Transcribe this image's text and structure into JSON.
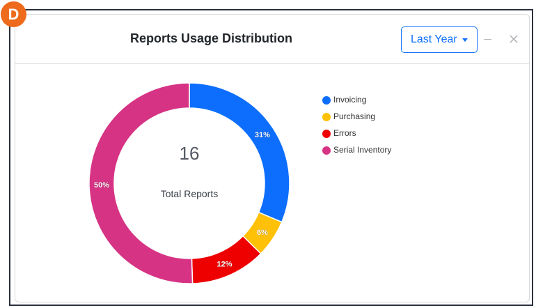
{
  "badge": {
    "letter": "D",
    "color": "#ee6a1c"
  },
  "card": {
    "title": "Reports Usage Distribution",
    "period_label": "Last Year",
    "minimize_icon": "minus-icon",
    "close_icon": "close-icon"
  },
  "chart_data": {
    "type": "pie",
    "variant": "donut",
    "title": "Reports Usage Distribution",
    "center_value": "16",
    "center_label": "Total Reports",
    "categories": [
      "Invoicing",
      "Purchasing",
      "Errors",
      "Serial Inventory"
    ],
    "values": [
      31,
      6,
      12,
      50
    ],
    "value_labels": [
      "31%",
      "6%",
      "12%",
      "50%"
    ],
    "colors": [
      "#0d6efd",
      "#ffc107",
      "#ee0000",
      "#d63384"
    ],
    "legend_position": "right"
  }
}
